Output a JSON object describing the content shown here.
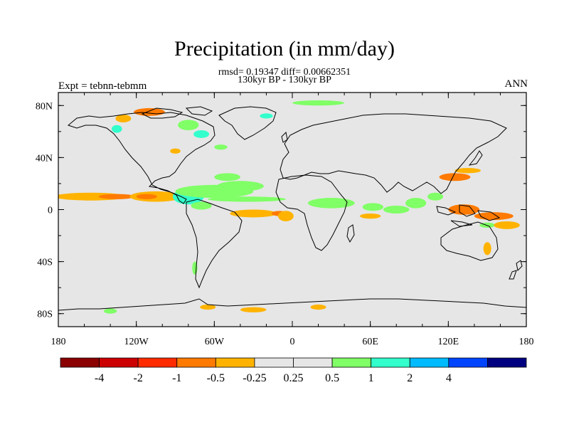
{
  "chart_data": {
    "type": "heatmap",
    "title": "Precipitation (in mm/day)",
    "subtitle_stats": "rmsd= 0.19347 diff= 0.00662351",
    "subtitle_period": "130kyr BP - 130kyr BP",
    "left_label": "Expt = tebnn-tebmm",
    "right_label": "ANN",
    "x_range": [
      -180,
      180
    ],
    "y_range": [
      -90,
      90
    ],
    "x_ticks": [
      {
        "value": -180,
        "label": "180"
      },
      {
        "value": -120,
        "label": "120W"
      },
      {
        "value": -60,
        "label": "60W"
      },
      {
        "value": 0,
        "label": "0"
      },
      {
        "value": 60,
        "label": "60E"
      },
      {
        "value": 120,
        "label": "120E"
      },
      {
        "value": 180,
        "label": "180"
      }
    ],
    "y_ticks": [
      {
        "value": 80,
        "label": "80N"
      },
      {
        "value": 40,
        "label": "40N"
      },
      {
        "value": 0,
        "label": "0"
      },
      {
        "value": -40,
        "label": "40S"
      },
      {
        "value": -80,
        "label": "80S"
      }
    ],
    "colorbar": {
      "colors": [
        "#8b0000",
        "#cc0000",
        "#ff2a00",
        "#ff7a00",
        "#ffb300",
        "#e6e6e6",
        "#e6e6e6",
        "#80ff66",
        "#33ffcc",
        "#00bbff",
        "#0044ff",
        "#000080"
      ],
      "labels": [
        "-4",
        "-2",
        "-1",
        "-0.5",
        "-0.25",
        "0.25",
        "0.5",
        "1",
        "2",
        "4"
      ]
    },
    "background_color": "#e6e6e6",
    "anomalies": [
      {
        "lon": -155,
        "lat": 10,
        "rlon": 28,
        "rlat": 3,
        "color": "#ffb300"
      },
      {
        "lon": -135,
        "lat": 10,
        "rlon": 14,
        "rlat": 2,
        "color": "#ff7a00"
      },
      {
        "lon": -105,
        "lat": 10,
        "rlon": 20,
        "rlat": 4,
        "color": "#ffb300"
      },
      {
        "lon": -112,
        "lat": 10,
        "rlon": 8,
        "rlat": 2,
        "color": "#ff7a00"
      },
      {
        "lon": -80,
        "lat": 10,
        "rlon": 12,
        "rlat": 6,
        "color": "#33ffcc"
      },
      {
        "lon": -60,
        "lat": 14,
        "rlon": 30,
        "rlat": 5,
        "color": "#80ff66"
      },
      {
        "lon": -40,
        "lat": 18,
        "rlon": 18,
        "rlat": 4,
        "color": "#80ff66"
      },
      {
        "lon": -50,
        "lat": 25,
        "rlon": 10,
        "rlat": 3,
        "color": "#80ff66"
      },
      {
        "lon": -35,
        "lat": 8,
        "rlon": 30,
        "rlat": 2,
        "color": "#80ff66"
      },
      {
        "lon": -30,
        "lat": -3,
        "rlon": 18,
        "rlat": 3,
        "color": "#ffb300"
      },
      {
        "lon": -10,
        "lat": -3,
        "rlon": 6,
        "rlat": 2,
        "color": "#ff7a00"
      },
      {
        "lon": -70,
        "lat": 3,
        "rlon": 8,
        "rlat": 3,
        "color": "#80ff66"
      },
      {
        "lon": -135,
        "lat": 62,
        "rlon": 4,
        "rlat": 3,
        "color": "#33ffcc"
      },
      {
        "lon": -130,
        "lat": 70,
        "rlon": 6,
        "rlat": 3,
        "color": "#ffb300"
      },
      {
        "lon": -110,
        "lat": 75,
        "rlon": 12,
        "rlat": 3,
        "color": "#ff7a00"
      },
      {
        "lon": -80,
        "lat": 65,
        "rlon": 8,
        "rlat": 4,
        "color": "#80ff66"
      },
      {
        "lon": -70,
        "lat": 58,
        "rlon": 6,
        "rlat": 3,
        "color": "#33ffcc"
      },
      {
        "lon": -20,
        "lat": 72,
        "rlon": 5,
        "rlat": 2,
        "color": "#33ffcc"
      },
      {
        "lon": -55,
        "lat": 48,
        "rlon": 5,
        "rlat": 2,
        "color": "#80ff66"
      },
      {
        "lon": -90,
        "lat": 45,
        "rlon": 4,
        "rlat": 2,
        "color": "#ffb300"
      },
      {
        "lon": 20,
        "lat": 82,
        "rlon": 20,
        "rlat": 2,
        "color": "#80ff66"
      },
      {
        "lon": 30,
        "lat": 5,
        "rlon": 18,
        "rlat": 4,
        "color": "#80ff66"
      },
      {
        "lon": 62,
        "lat": 2,
        "rlon": 8,
        "rlat": 3,
        "color": "#80ff66"
      },
      {
        "lon": 80,
        "lat": 0,
        "rlon": 10,
        "rlat": 3,
        "color": "#80ff66"
      },
      {
        "lon": 95,
        "lat": 5,
        "rlon": 8,
        "rlat": 4,
        "color": "#80ff66"
      },
      {
        "lon": 125,
        "lat": 25,
        "rlon": 12,
        "rlat": 3,
        "color": "#ff7a00"
      },
      {
        "lon": 135,
        "lat": 30,
        "rlon": 10,
        "rlat": 2,
        "color": "#ffb300"
      },
      {
        "lon": 132,
        "lat": 0,
        "rlon": 12,
        "rlat": 4,
        "color": "#ff7a00"
      },
      {
        "lon": 155,
        "lat": -5,
        "rlon": 15,
        "rlat": 3,
        "color": "#ff7a00"
      },
      {
        "lon": 150,
        "lat": -12,
        "rlon": 6,
        "rlat": 2,
        "color": "#80ff66"
      },
      {
        "lon": 165,
        "lat": -12,
        "rlon": 10,
        "rlat": 3,
        "color": "#ffb300"
      },
      {
        "lon": 150,
        "lat": -30,
        "rlon": 3,
        "rlat": 5,
        "color": "#ffb300"
      },
      {
        "lon": 60,
        "lat": -5,
        "rlon": 8,
        "rlat": 2,
        "color": "#ffb300"
      },
      {
        "lon": -5,
        "lat": -5,
        "rlon": 6,
        "rlat": 4,
        "color": "#ffb300"
      },
      {
        "lon": -75,
        "lat": -45,
        "rlon": 2,
        "rlat": 5,
        "color": "#80ff66"
      },
      {
        "lon": -65,
        "lat": -75,
        "rlon": 6,
        "rlat": 2,
        "color": "#ffb300"
      },
      {
        "lon": -30,
        "lat": -77,
        "rlon": 10,
        "rlat": 2,
        "color": "#ffb300"
      },
      {
        "lon": 20,
        "lat": -75,
        "rlon": 6,
        "rlat": 2,
        "color": "#ffb300"
      },
      {
        "lon": -140,
        "lat": -78,
        "rlon": 5,
        "rlat": 2,
        "color": "#80ff66"
      },
      {
        "lon": 110,
        "lat": 10,
        "rlon": 6,
        "rlat": 3,
        "color": "#80ff66"
      }
    ]
  }
}
